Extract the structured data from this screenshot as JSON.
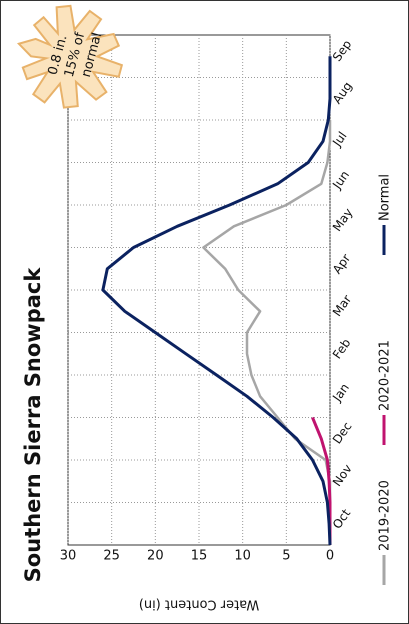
{
  "chart_data": {
    "type": "line",
    "title": "Southern Sierra Snowpack",
    "y_label": "Water Content (in)",
    "categories": [
      "Oct",
      null,
      "Nov",
      null,
      "Dec",
      null,
      "Jan",
      null,
      "Feb",
      null,
      "Mar",
      null,
      "Apr",
      null,
      "May",
      null,
      "Jun",
      null,
      "Jul",
      null,
      "Aug",
      null,
      "Sep",
      null
    ],
    "series": [
      {
        "name": "2019-2020",
        "color": "#a6a6a6",
        "values": [
          0,
          0,
          0,
          0,
          0.5,
          4,
          6,
          8,
          9,
          9.5,
          9.5,
          8,
          10.5,
          12,
          14.5,
          11,
          5,
          1,
          0.3,
          0,
          0,
          null,
          null,
          null
        ]
      },
      {
        "name": "2020-2021",
        "color": "#c0136f",
        "values": [
          0,
          0,
          0,
          0.1,
          0.3,
          1,
          2,
          null,
          null,
          null,
          null,
          null,
          null,
          null,
          null,
          null,
          null,
          null,
          null,
          null,
          null,
          null,
          null,
          null
        ]
      },
      {
        "name": "Normal",
        "color": "#0b2260",
        "values": [
          0,
          0.1,
          0.3,
          0.8,
          2,
          3.8,
          6.5,
          9.5,
          13,
          16.5,
          20,
          23.5,
          26,
          25.5,
          22.5,
          17.5,
          11.5,
          6,
          2.5,
          0.8,
          0.2,
          0,
          0,
          0
        ]
      }
    ],
    "ylim": [
      0,
      30
    ],
    "yticks": [
      0,
      5,
      10,
      15,
      20,
      25,
      30
    ],
    "grid": true,
    "annotation": [
      "0.8 in.",
      "15% of",
      "normal"
    ]
  }
}
